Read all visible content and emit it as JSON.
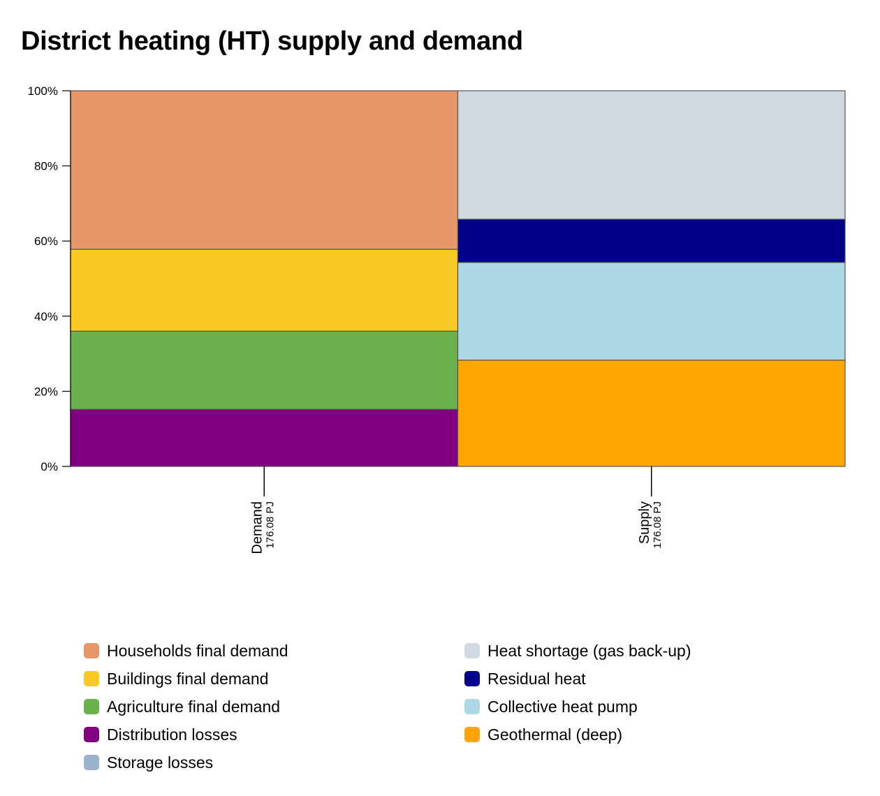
{
  "title": "District heating (HT) supply and demand",
  "chart_data": {
    "type": "bar",
    "stacked": true,
    "percent_stacked": true,
    "title": "District heating (HT) supply and demand",
    "ylim": [
      0,
      100
    ],
    "y_ticks": [
      "0%",
      "20%",
      "40%",
      "60%",
      "80%",
      "100%"
    ],
    "y_tick_values": [
      0,
      20,
      40,
      60,
      80,
      100
    ],
    "categories": [
      "Demand",
      "Supply"
    ],
    "category_totals": [
      "176.08 PJ",
      "176.08 PJ"
    ],
    "series": [
      {
        "name": "Distribution losses",
        "color": "#800080",
        "values": [
          15.2,
          0
        ]
      },
      {
        "name": "Agriculture final demand",
        "color": "#6ab04c",
        "values": [
          20.8,
          0
        ]
      },
      {
        "name": "Buildings final demand",
        "color": "#f9ca24",
        "values": [
          21.8,
          0
        ]
      },
      {
        "name": "Households final demand",
        "color": "#e69668",
        "values": [
          42.2,
          0
        ]
      },
      {
        "name": "Storage losses",
        "color": "#9bb4cd",
        "values": [
          0,
          0
        ]
      },
      {
        "name": "Geothermal (deep)",
        "color": "#ffa500",
        "values": [
          0,
          28.3
        ]
      },
      {
        "name": "Collective heat pump",
        "color": "#add8e6",
        "values": [
          0,
          26.0
        ]
      },
      {
        "name": "Residual heat",
        "color": "#00008b",
        "values": [
          0,
          11.5
        ]
      },
      {
        "name": "Heat shortage (gas back-up)",
        "color": "#d0d8e1",
        "values": [
          0,
          34.2
        ]
      }
    ],
    "legend": {
      "position": "bottom",
      "columns": [
        [
          "Households final demand",
          "Buildings final demand",
          "Agriculture final demand",
          "Distribution losses",
          "Storage losses"
        ],
        [
          "Heat shortage (gas back-up)",
          "Residual heat",
          "Collective heat pump",
          "Geothermal (deep)"
        ]
      ]
    },
    "grid": false
  }
}
